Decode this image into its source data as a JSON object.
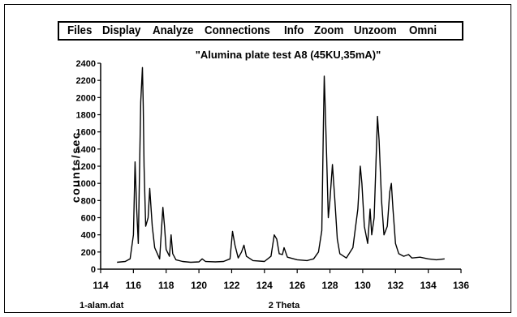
{
  "menu": {
    "items": [
      "Files",
      "Display",
      "Analyze",
      "Connections",
      "Info",
      "Zoom",
      "Unzoom",
      "Omni"
    ]
  },
  "status": {
    "filename": "1-alam.dat"
  },
  "chart_data": {
    "type": "line",
    "title": "\"Alumina plate test A8 (45KU,35mA)\"",
    "xlabel": "2 Theta",
    "ylabel": "counts/sec",
    "xlim": [
      114,
      136
    ],
    "ylim": [
      0,
      2400
    ],
    "xticks": [
      "114",
      "116",
      "118",
      "120",
      "122",
      "124",
      "126",
      "128",
      "130",
      "132",
      "134",
      "136"
    ],
    "yticks": [
      "0",
      "200",
      "400",
      "600",
      "800",
      "1000",
      "1200",
      "1400",
      "1600",
      "1800",
      "2000",
      "2200",
      "2400"
    ],
    "grid": false,
    "series": [
      {
        "x": [
          115.0,
          115.5,
          115.8,
          116.0,
          116.1,
          116.2,
          116.3,
          116.45,
          116.55,
          116.6,
          116.65,
          116.75,
          116.9,
          117.0,
          117.15,
          117.3,
          117.6,
          117.8,
          117.9,
          118.0,
          118.2,
          118.3,
          118.4,
          118.6,
          119.0,
          119.5,
          120.0,
          120.2,
          120.4,
          121.0,
          121.5,
          121.9,
          122.05,
          122.2,
          122.4,
          122.6,
          122.75,
          122.9,
          123.3,
          124.0,
          124.4,
          124.6,
          124.75,
          124.9,
          125.1,
          125.2,
          125.4,
          126.0,
          126.6,
          127.0,
          127.3,
          127.5,
          127.6,
          127.65,
          127.7,
          127.8,
          127.9,
          128.0,
          128.15,
          128.3,
          128.45,
          128.6,
          129.0,
          129.4,
          129.7,
          129.85,
          129.95,
          130.1,
          130.3,
          130.45,
          130.55,
          130.7,
          130.8,
          130.9,
          131.0,
          131.15,
          131.3,
          131.5,
          131.65,
          131.75,
          131.85,
          132.0,
          132.2,
          132.5,
          132.8,
          133.0,
          133.5,
          134.0,
          134.5,
          135.0
        ],
        "y": [
          80,
          90,
          120,
          400,
          1250,
          700,
          300,
          1950,
          2350,
          1900,
          1200,
          500,
          600,
          940,
          500,
          250,
          120,
          720,
          500,
          230,
          150,
          400,
          180,
          110,
          90,
          80,
          85,
          120,
          90,
          85,
          90,
          120,
          440,
          280,
          130,
          200,
          280,
          150,
          100,
          90,
          150,
          400,
          350,
          180,
          170,
          250,
          140,
          110,
          100,
          120,
          200,
          450,
          1700,
          2250,
          1950,
          1300,
          600,
          800,
          1220,
          800,
          350,
          180,
          130,
          250,
          700,
          1200,
          1000,
          500,
          300,
          700,
          400,
          600,
          1200,
          1780,
          1500,
          800,
          400,
          500,
          900,
          1000,
          700,
          300,
          180,
          150,
          170,
          130,
          140,
          120,
          110,
          120
        ]
      }
    ]
  }
}
